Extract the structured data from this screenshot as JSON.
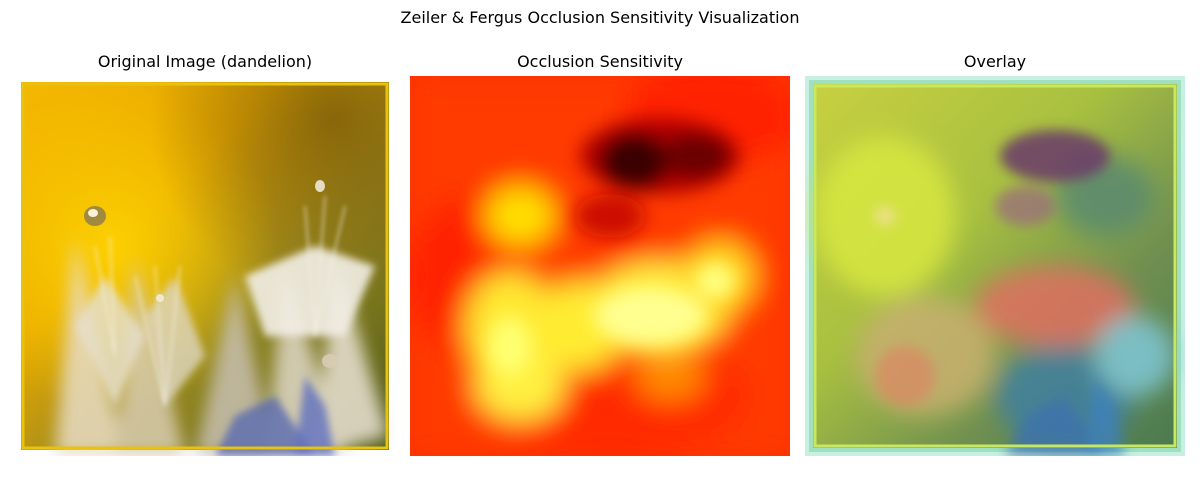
{
  "figure": {
    "title": "Zeiler & Fergus Occlusion Sensitivity Visualization"
  },
  "panels": [
    {
      "title": "Original Image (dandelion)"
    },
    {
      "title": "Occlusion Sensitivity"
    },
    {
      "title": "Overlay"
    }
  ],
  "colors": {
    "frame": "#e8c20e",
    "background_yellow": "#f0b400",
    "heat_low": "#ff2200",
    "heat_high": "#ffff80",
    "heat_cold": "#3a0000",
    "overlay_tint": "#7fe3c9"
  }
}
